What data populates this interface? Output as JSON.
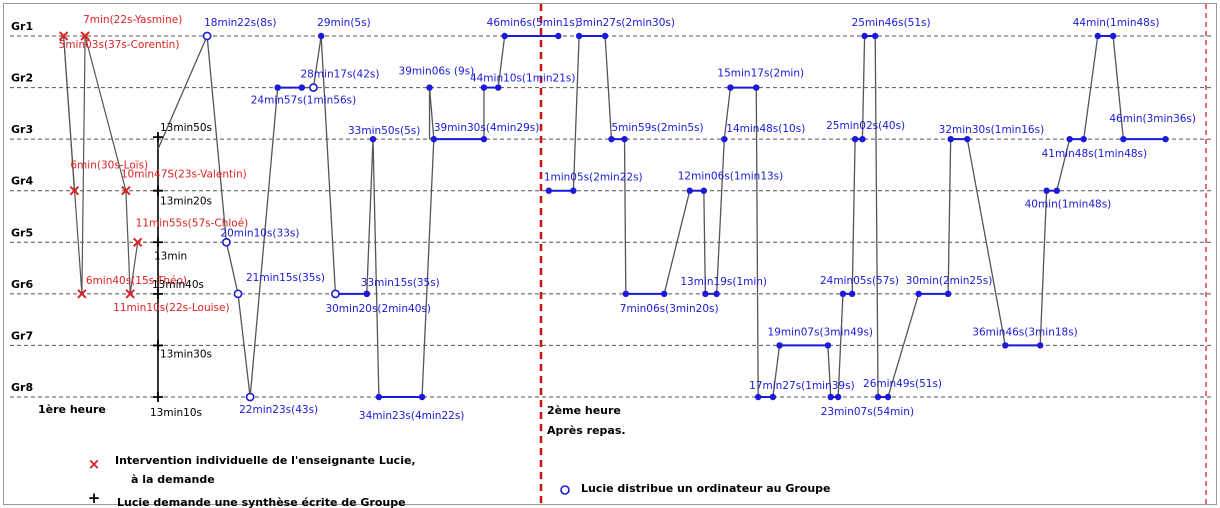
{
  "chart_data": {
    "type": "scatter",
    "groups": [
      "Gr1",
      "Gr2",
      "Gr3",
      "Gr4",
      "Gr5",
      "Gr6",
      "Gr7",
      "Gr8"
    ],
    "colors": {
      "teacher": "#dd2222",
      "path": "#555555",
      "visit": "#1a1ad8",
      "divider": "#cc1111",
      "grid": "#555555"
    },
    "hours": [
      {
        "label": "1ère heure",
        "sublabel": ""
      },
      {
        "label": "2ème heure",
        "sublabel": "Après repas."
      }
    ],
    "hour1": {
      "teacher_interventions": [
        {
          "label": "7min(22s-Yasmine)",
          "group": "Gr1",
          "t": 7
        },
        {
          "label": "5min03s(37s-Corentin)",
          "group": "Gr1",
          "t": 5
        },
        {
          "label": "6min(30s-Loïs)",
          "group": "Gr4",
          "t": 6
        },
        {
          "label": "10min47S(23s-Valentin)",
          "group": "Gr4",
          "t": 10.8
        },
        {
          "label": "11min55s(57s-Chloé)",
          "group": "Gr5",
          "t": 11.9
        },
        {
          "label": "6min40s(15s-Théo)",
          "group": "Gr6",
          "t": 6.7
        },
        {
          "label": "11min10s(22s-Louise)",
          "group": "Gr6",
          "t": 11.2
        }
      ],
      "synthesis_requests": [
        {
          "label": "13min50s",
          "group": "Gr3",
          "t": 13.83
        },
        {
          "label": "13min20s",
          "group": "Gr4",
          "t": 13.33
        },
        {
          "label": "13min",
          "group": "Gr5",
          "t": 13
        },
        {
          "label": "13min40s",
          "group": "Gr6",
          "t": 13.67
        },
        {
          "label": "13min30s",
          "group": "Gr7",
          "t": 13.5
        },
        {
          "label": "13min10s",
          "group": "Gr8",
          "t": 13.17
        }
      ],
      "visits": [
        {
          "label": "18min22s(8s)",
          "group": "Gr1",
          "t": 18.37,
          "computer": true
        },
        {
          "label": "20min10s(33s)",
          "group": "Gr5",
          "t": 20.17,
          "computer": true
        },
        {
          "label": "21min15s(35s)",
          "group": "Gr6",
          "t": 21.25,
          "computer": true
        },
        {
          "label": "22min23s(43s)",
          "group": "Gr8",
          "t": 22.38,
          "computer": true
        },
        {
          "label": "24min57s(1min56s)",
          "group": "Gr2",
          "t": 24.95,
          "computer": false
        },
        {
          "label": "28min17s(42s)",
          "group": "Gr2",
          "t": 28.28,
          "computer": true
        },
        {
          "label": "29min(5s)",
          "group": "Gr1",
          "t": 29,
          "computer": false
        },
        {
          "label": "30min20s(2min40s)",
          "group": "Gr6",
          "t": 30.33,
          "computer": true
        },
        {
          "label": "33min15s(35s)",
          "group": "Gr6",
          "t": 33.25,
          "computer": false
        },
        {
          "label": "33min50s(5s)",
          "group": "Gr3",
          "t": 33.83,
          "computer": false
        },
        {
          "label": "34min23s(4min22s)",
          "group": "Gr8",
          "t": 34.38,
          "computer": false
        },
        {
          "label": "39min06s (9s)",
          "group": "Gr2",
          "t": 39.1,
          "computer": false
        },
        {
          "label": "39min30s(4min29s)",
          "group": "Gr3",
          "t": 39.5,
          "computer": false
        },
        {
          "label": "44min10s(1min21s)",
          "group": "Gr2",
          "t": 44.17,
          "computer": false
        },
        {
          "label": "46min6s(5min1s)",
          "group": "Gr1",
          "t": 46.1,
          "computer": false
        }
      ]
    },
    "hour2": {
      "visits": [
        {
          "label": "1min05s(2min22s)",
          "group": "Gr4",
          "t": 1.08
        },
        {
          "label": "3min27s(2min30s)",
          "group": "Gr1",
          "t": 3.45
        },
        {
          "label": "5min59s(2min5s)",
          "group": "Gr3",
          "t": 5.98
        },
        {
          "label": "7min06s(3min20s)",
          "group": "Gr6",
          "t": 7.1
        },
        {
          "label": "12min06s(1min13s)",
          "group": "Gr4",
          "t": 12.1
        },
        {
          "label": "13min19s(1min)",
          "group": "Gr6",
          "t": 13.32
        },
        {
          "label": "14min48s(10s)",
          "group": "Gr3",
          "t": 14.8
        },
        {
          "label": "15min17s(2min)",
          "group": "Gr2",
          "t": 15.28
        },
        {
          "label": "17min27s(1min39s)",
          "group": "Gr8",
          "t": 17.45
        },
        {
          "label": "19min07s(3min49s)",
          "group": "Gr7",
          "t": 19.12
        },
        {
          "label": "23min07s(54min)",
          "group": "Gr8",
          "t": 23.12
        },
        {
          "label": "24min05s(57s)",
          "group": "Gr6",
          "t": 24.08
        },
        {
          "label": "25min02s(40s)",
          "group": "Gr3",
          "t": 25.03
        },
        {
          "label": "25min46s(51s)",
          "group": "Gr1",
          "t": 25.77
        },
        {
          "label": "26min49s(51s)",
          "group": "Gr8",
          "t": 26.82
        },
        {
          "label": "30min(2min25s)",
          "group": "Gr6",
          "t": 30
        },
        {
          "label": "32min30s(1min16s)",
          "group": "Gr3",
          "t": 32.5
        },
        {
          "label": "36min46s(3min18s)",
          "group": "Gr7",
          "t": 36.77
        },
        {
          "label": "40min(1min48s)",
          "group": "Gr4",
          "t": 40
        },
        {
          "label": "41min48s(1min48s)",
          "group": "Gr3",
          "t": 41.8
        },
        {
          "label": "44min(1min48s)",
          "group": "Gr1",
          "t": 44
        },
        {
          "label": "46min(3min36s)",
          "group": "Gr3",
          "t": 46
        }
      ]
    },
    "legend": {
      "cross_text_1": "Intervention individuelle de l'enseignante Lucie,",
      "cross_text_2": "à la  demande",
      "plus_text": "Lucie demande une synthèse écrite de Groupe",
      "circle_text": "Lucie distribue un ordinateur au Groupe"
    }
  }
}
